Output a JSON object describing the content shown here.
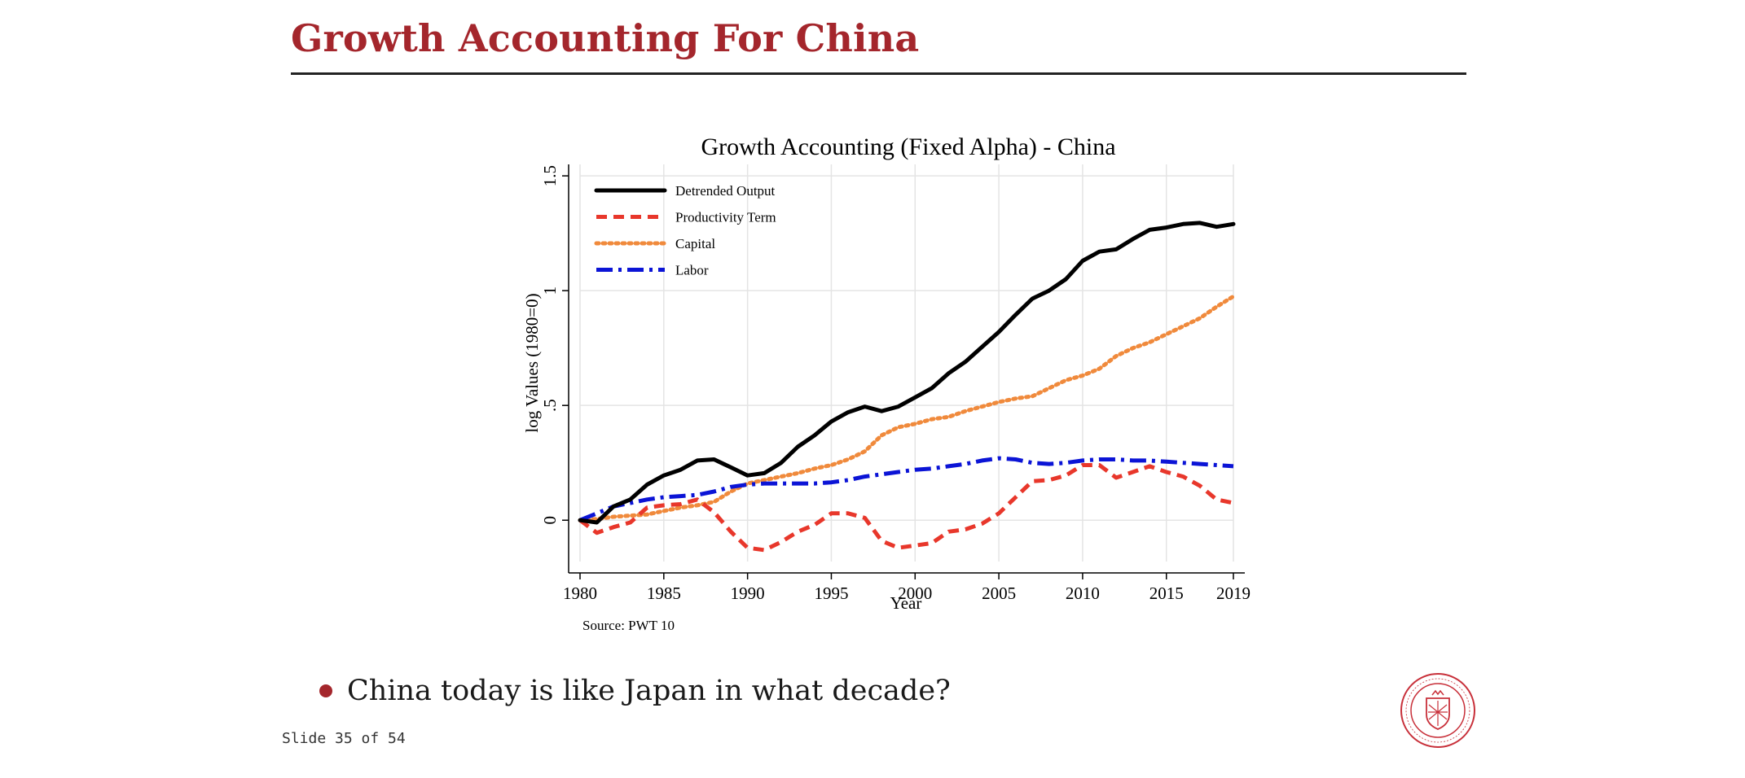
{
  "slide": {
    "title": "Growth Accounting For China",
    "bullet": "China today is like Japan in what decade?",
    "slide_number": "Slide 35 of 54"
  },
  "colors": {
    "accent": "#a4262c",
    "output": "#000000",
    "productivity": "#e8372b",
    "capital": "#f08a3c",
    "labor": "#0b14d6"
  },
  "logo": {
    "icon": "carnegie-mellon-seal-icon"
  },
  "chart_data": {
    "type": "line",
    "title": "Growth Accounting (Fixed Alpha) - China",
    "xlabel": "Year",
    "ylabel": "log Values (1980=0)",
    "source": "Source: PWT 10",
    "xlim": [
      1980,
      2019
    ],
    "ylim": [
      -0.18,
      1.55
    ],
    "xticks": [
      1980,
      1985,
      1990,
      1995,
      2000,
      2005,
      2010,
      2015,
      2019
    ],
    "yticks": [
      0,
      0.5,
      1,
      1.5
    ],
    "ytick_labels": [
      "0",
      ".5",
      "1",
      "1.5"
    ],
    "grid": true,
    "legend_position": "top-left",
    "x": [
      1980,
      1981,
      1982,
      1983,
      1984,
      1985,
      1986,
      1987,
      1988,
      1989,
      1990,
      1991,
      1992,
      1993,
      1994,
      1995,
      1996,
      1997,
      1998,
      1999,
      2000,
      2001,
      2002,
      2003,
      2004,
      2005,
      2006,
      2007,
      2008,
      2009,
      2010,
      2011,
      2012,
      2013,
      2014,
      2015,
      2016,
      2017,
      2018,
      2019
    ],
    "series": [
      {
        "name": "Detrended Output",
        "style": "solid",
        "color": "#000000",
        "values": [
          0,
          -0.01,
          0.06,
          0.09,
          0.155,
          0.195,
          0.22,
          0.26,
          0.265,
          0.23,
          0.195,
          0.205,
          0.25,
          0.32,
          0.37,
          0.43,
          0.47,
          0.495,
          0.475,
          0.495,
          0.535,
          0.575,
          0.64,
          0.69,
          0.755,
          0.82,
          0.895,
          0.965,
          1.0,
          1.05,
          1.13,
          1.17,
          1.18,
          1.225,
          1.265,
          1.275,
          1.29,
          1.295,
          1.278,
          1.29
        ]
      },
      {
        "name": "Productivity Term",
        "style": "dashed",
        "color": "#e8372b",
        "values": [
          0,
          -0.055,
          -0.03,
          -0.01,
          0.055,
          0.065,
          0.07,
          0.09,
          0.035,
          -0.05,
          -0.12,
          -0.13,
          -0.095,
          -0.05,
          -0.02,
          0.03,
          0.03,
          0.01,
          -0.09,
          -0.12,
          -0.11,
          -0.1,
          -0.05,
          -0.04,
          -0.015,
          0.03,
          0.1,
          0.17,
          0.175,
          0.195,
          0.24,
          0.24,
          0.185,
          0.21,
          0.235,
          0.21,
          0.19,
          0.15,
          0.09,
          0.075
        ]
      },
      {
        "name": "Capital",
        "style": "dotted",
        "color": "#f08a3c",
        "values": [
          0,
          0.005,
          0.015,
          0.02,
          0.025,
          0.04,
          0.055,
          0.065,
          0.08,
          0.125,
          0.16,
          0.175,
          0.19,
          0.205,
          0.225,
          0.24,
          0.265,
          0.3,
          0.37,
          0.405,
          0.42,
          0.44,
          0.45,
          0.475,
          0.495,
          0.515,
          0.53,
          0.54,
          0.575,
          0.61,
          0.63,
          0.66,
          0.715,
          0.75,
          0.775,
          0.81,
          0.845,
          0.88,
          0.93,
          0.975
        ]
      },
      {
        "name": "Labor",
        "style": "dashdot",
        "color": "#0b14d6",
        "values": [
          0,
          0.03,
          0.06,
          0.075,
          0.09,
          0.1,
          0.105,
          0.11,
          0.125,
          0.145,
          0.155,
          0.16,
          0.16,
          0.16,
          0.16,
          0.165,
          0.175,
          0.19,
          0.2,
          0.21,
          0.22,
          0.225,
          0.235,
          0.245,
          0.26,
          0.27,
          0.265,
          0.25,
          0.245,
          0.25,
          0.26,
          0.265,
          0.265,
          0.26,
          0.26,
          0.255,
          0.25,
          0.245,
          0.24,
          0.235
        ]
      }
    ]
  }
}
